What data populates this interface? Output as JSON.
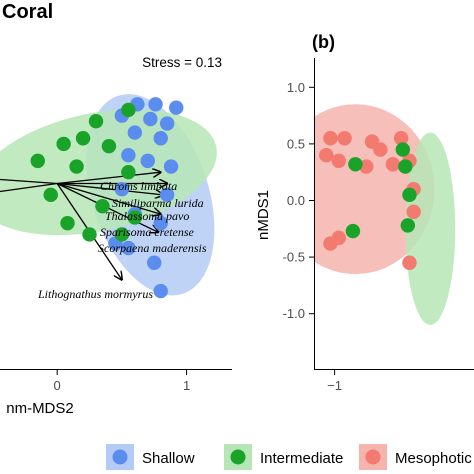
{
  "chart_data": [
    {
      "type": "scatter",
      "title": "Coral",
      "stress_label": "Stress = 0.13",
      "xlabel": "nm-MDS2",
      "ylabel": "",
      "xlim": [
        -0.55,
        1.15
      ],
      "ylim": [
        -1.25,
        1.25
      ],
      "x_ticks": [
        0,
        1
      ],
      "x_tick_labels": [
        "0",
        "1"
      ],
      "grid": false,
      "colors": {
        "Shallow": "#5b8def",
        "Intermediate": "#1aa329",
        "Mesophotic": "#f27a6e"
      },
      "ellipses": [
        {
          "group": "Shallow",
          "cx": 0.72,
          "cy": 0.05,
          "rx": 0.45,
          "ry": 0.92,
          "angle": 18,
          "color": "#b4cbf5"
        },
        {
          "group": "Intermediate",
          "cx": 0.3,
          "cy": 0.25,
          "rx": 0.95,
          "ry": 0.52,
          "angle": 12,
          "color": "#b6e6b6"
        }
      ],
      "series": [
        {
          "name": "Shallow",
          "points": [
            [
              0.62,
              0.85
            ],
            [
              0.76,
              0.85
            ],
            [
              0.92,
              0.82
            ],
            [
              0.5,
              0.75
            ],
            [
              0.72,
              0.72
            ],
            [
              0.85,
              0.68
            ],
            [
              0.6,
              0.6
            ],
            [
              0.8,
              0.55
            ],
            [
              0.55,
              0.4
            ],
            [
              0.7,
              0.35
            ],
            [
              0.88,
              0.3
            ],
            [
              0.5,
              0.1
            ],
            [
              0.85,
              0.05
            ],
            [
              0.6,
              -0.12
            ],
            [
              0.8,
              -0.2
            ],
            [
              0.45,
              -0.38
            ],
            [
              0.55,
              -0.42
            ],
            [
              0.75,
              -0.55
            ],
            [
              0.8,
              -0.8
            ]
          ]
        },
        {
          "name": "Intermediate",
          "points": [
            [
              0.55,
              0.8
            ],
            [
              0.3,
              0.7
            ],
            [
              0.2,
              0.55
            ],
            [
              0.05,
              0.5
            ],
            [
              0.4,
              0.48
            ],
            [
              -0.15,
              0.35
            ],
            [
              0.15,
              0.3
            ],
            [
              0.55,
              0.25
            ],
            [
              -0.05,
              0.05
            ],
            [
              0.35,
              -0.05
            ],
            [
              0.08,
              -0.2
            ],
            [
              0.6,
              -0.15
            ],
            [
              0.25,
              -0.3
            ],
            [
              0.5,
              -0.3
            ]
          ]
        }
      ],
      "vectors": [
        {
          "label": "Chroms limbata",
          "end": [
            0.8,
            0.25
          ]
        },
        {
          "label": "Similiparma lurida",
          "end": [
            0.85,
            0.15
          ]
        },
        {
          "label": "Thalassoma pavo",
          "end": [
            0.82,
            0.05
          ]
        },
        {
          "label": "Sparisoma cretense",
          "end": [
            0.8,
            -0.12
          ]
        },
        {
          "label": "Scorpaena maderensis",
          "end": [
            0.78,
            -0.28
          ]
        },
        {
          "label": "Lithognathus mormyrus",
          "end": [
            0.5,
            -0.7
          ]
        }
      ],
      "vector_origin": [
        0.0,
        0.15
      ]
    },
    {
      "type": "scatter",
      "panel_label": "(b)",
      "title": "",
      "xlabel": "",
      "ylabel": "nMDS1",
      "xlim": [
        -1.5,
        1.0
      ],
      "ylim": [
        -1.25,
        1.25
      ],
      "x_ticks": [
        -1
      ],
      "x_tick_labels": [
        "−1"
      ],
      "y_ticks": [
        1.0,
        0.5,
        0.0,
        -0.5,
        -1.0
      ],
      "y_tick_labels": [
        "1.0",
        "0.5",
        "0.0",
        "-0.5",
        "-1.0"
      ],
      "grid": false,
      "colors": {
        "Intermediate": "#1aa329",
        "Mesophotic": "#f27a6e"
      },
      "ellipses": [
        {
          "group": "Mesophotic",
          "cx": -0.75,
          "cy": 0.1,
          "rx": 0.95,
          "ry": 0.75,
          "angle": 0,
          "color": "#f5b4ad"
        },
        {
          "group": "Intermediate",
          "cx": 0.15,
          "cy": -0.25,
          "rx": 0.3,
          "ry": 0.85,
          "angle": 0,
          "color": "#b6e6b6"
        }
      ],
      "series": [
        {
          "name": "Mesophotic",
          "points": [
            [
              -1.05,
              0.55
            ],
            [
              -0.88,
              0.55
            ],
            [
              -0.55,
              0.52
            ],
            [
              -1.1,
              0.4
            ],
            [
              -0.95,
              0.35
            ],
            [
              -0.45,
              0.45
            ],
            [
              -0.3,
              0.32
            ],
            [
              -0.2,
              0.55
            ],
            [
              -0.1,
              0.35
            ],
            [
              -0.62,
              0.3
            ],
            [
              -0.05,
              0.1
            ],
            [
              -0.05,
              -0.1
            ],
            [
              -1.05,
              -0.38
            ],
            [
              -0.95,
              -0.33
            ],
            [
              -0.1,
              -0.55
            ]
          ]
        },
        {
          "name": "Intermediate",
          "points": [
            [
              -0.75,
              0.32
            ],
            [
              -0.18,
              0.45
            ],
            [
              -0.15,
              0.3
            ],
            [
              -0.78,
              -0.27
            ],
            [
              -0.1,
              0.05
            ],
            [
              -0.12,
              -0.22
            ]
          ]
        }
      ]
    }
  ],
  "legend": {
    "placement": "bottom",
    "items": [
      {
        "label": "Shallow",
        "color": "#5b8def",
        "fill": "#b4cbf5"
      },
      {
        "label": "Intermediate",
        "color": "#1aa329",
        "fill": "#b6e6b6"
      },
      {
        "label": "Mesophotic",
        "color": "#f27a6e",
        "fill": "#f5b4ad"
      }
    ]
  }
}
